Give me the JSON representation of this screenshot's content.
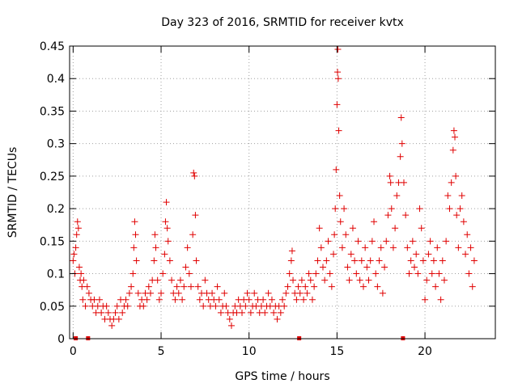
{
  "chart_data": {
    "type": "scatter",
    "title": "Day 323 of 2016, SRMTID for receiver kvtx",
    "xlabel": "GPS time / hours",
    "ylabel": "SRMTID / TECUs",
    "xlim": [
      -0.2,
      24
    ],
    "ylim": [
      0,
      0.45
    ],
    "xticks": [
      0,
      5,
      10,
      15,
      20
    ],
    "xtick_labels": [
      "0",
      "5",
      "10",
      "15",
      "20"
    ],
    "yticks": [
      0,
      0.05,
      0.1,
      0.15,
      0.2,
      0.25,
      0.3,
      0.35,
      0.4,
      0.45
    ],
    "ytick_labels": [
      "0",
      "0.05",
      "0.1",
      "0.15",
      "0.2",
      "0.25",
      "0.3",
      "0.35",
      "0.4",
      "0.45"
    ],
    "grid": true,
    "marker": "+",
    "color": "#e00000",
    "series": [
      {
        "name": "SRMTID",
        "points": [
          [
            0.0,
            0.12
          ],
          [
            0.05,
            0.13
          ],
          [
            0.1,
            0.1
          ],
          [
            0.15,
            0.14
          ],
          [
            0.2,
            0.16
          ],
          [
            0.25,
            0.18
          ],
          [
            0.3,
            0.17
          ],
          [
            0.35,
            0.11
          ],
          [
            0.4,
            0.09
          ],
          [
            0.45,
            0.1
          ],
          [
            0.5,
            0.08
          ],
          [
            0.55,
            0.06
          ],
          [
            0.6,
            0.09
          ],
          [
            0.7,
            0.05
          ],
          [
            0.8,
            0.08
          ],
          [
            0.9,
            0.07
          ],
          [
            1.0,
            0.06
          ],
          [
            1.1,
            0.05
          ],
          [
            1.2,
            0.06
          ],
          [
            1.3,
            0.04
          ],
          [
            1.4,
            0.05
          ],
          [
            1.5,
            0.06
          ],
          [
            1.6,
            0.04
          ],
          [
            1.7,
            0.05
          ],
          [
            1.8,
            0.03
          ],
          [
            1.9,
            0.05
          ],
          [
            2.0,
            0.04
          ],
          [
            2.1,
            0.03
          ],
          [
            2.2,
            0.02
          ],
          [
            2.3,
            0.03
          ],
          [
            2.4,
            0.04
          ],
          [
            2.5,
            0.05
          ],
          [
            2.6,
            0.03
          ],
          [
            2.7,
            0.06
          ],
          [
            2.8,
            0.04
          ],
          [
            2.9,
            0.05
          ],
          [
            3.0,
            0.06
          ],
          [
            3.1,
            0.05
          ],
          [
            3.2,
            0.07
          ],
          [
            3.3,
            0.08
          ],
          [
            3.4,
            0.1
          ],
          [
            3.45,
            0.14
          ],
          [
            3.5,
            0.18
          ],
          [
            3.55,
            0.16
          ],
          [
            3.6,
            0.12
          ],
          [
            3.7,
            0.07
          ],
          [
            3.8,
            0.05
          ],
          [
            3.9,
            0.06
          ],
          [
            4.0,
            0.05
          ],
          [
            4.1,
            0.07
          ],
          [
            4.2,
            0.06
          ],
          [
            4.3,
            0.08
          ],
          [
            4.4,
            0.07
          ],
          [
            4.5,
            0.09
          ],
          [
            4.6,
            0.12
          ],
          [
            4.65,
            0.16
          ],
          [
            4.7,
            0.14
          ],
          [
            4.8,
            0.09
          ],
          [
            4.9,
            0.06
          ],
          [
            5.0,
            0.07
          ],
          [
            5.1,
            0.1
          ],
          [
            5.2,
            0.13
          ],
          [
            5.25,
            0.18
          ],
          [
            5.3,
            0.21
          ],
          [
            5.35,
            0.17
          ],
          [
            5.4,
            0.15
          ],
          [
            5.5,
            0.12
          ],
          [
            5.6,
            0.09
          ],
          [
            5.7,
            0.07
          ],
          [
            5.8,
            0.06
          ],
          [
            5.9,
            0.08
          ],
          [
            6.0,
            0.07
          ],
          [
            6.1,
            0.09
          ],
          [
            6.2,
            0.06
          ],
          [
            6.3,
            0.08
          ],
          [
            6.4,
            0.11
          ],
          [
            6.5,
            0.14
          ],
          [
            6.6,
            0.1
          ],
          [
            6.7,
            0.08
          ],
          [
            6.8,
            0.16
          ],
          [
            6.85,
            0.255
          ],
          [
            6.9,
            0.25
          ],
          [
            6.95,
            0.19
          ],
          [
            7.0,
            0.12
          ],
          [
            7.1,
            0.08
          ],
          [
            7.2,
            0.06
          ],
          [
            7.3,
            0.07
          ],
          [
            7.4,
            0.05
          ],
          [
            7.5,
            0.09
          ],
          [
            7.6,
            0.07
          ],
          [
            7.7,
            0.06
          ],
          [
            7.8,
            0.05
          ],
          [
            7.9,
            0.07
          ],
          [
            8.0,
            0.06
          ],
          [
            8.1,
            0.05
          ],
          [
            8.2,
            0.08
          ],
          [
            8.3,
            0.06
          ],
          [
            8.4,
            0.04
          ],
          [
            8.5,
            0.05
          ],
          [
            8.6,
            0.07
          ],
          [
            8.7,
            0.05
          ],
          [
            8.8,
            0.04
          ],
          [
            8.9,
            0.03
          ],
          [
            9.0,
            0.02
          ],
          [
            9.1,
            0.04
          ],
          [
            9.2,
            0.05
          ],
          [
            9.3,
            0.04
          ],
          [
            9.4,
            0.06
          ],
          [
            9.5,
            0.05
          ],
          [
            9.6,
            0.04
          ],
          [
            9.7,
            0.06
          ],
          [
            9.8,
            0.05
          ],
          [
            9.9,
            0.07
          ],
          [
            10.0,
            0.06
          ],
          [
            10.1,
            0.04
          ],
          [
            10.2,
            0.05
          ],
          [
            10.3,
            0.07
          ],
          [
            10.4,
            0.05
          ],
          [
            10.5,
            0.06
          ],
          [
            10.6,
            0.04
          ],
          [
            10.7,
            0.05
          ],
          [
            10.8,
            0.06
          ],
          [
            10.9,
            0.04
          ],
          [
            11.0,
            0.05
          ],
          [
            11.1,
            0.07
          ],
          [
            11.2,
            0.05
          ],
          [
            11.3,
            0.06
          ],
          [
            11.4,
            0.04
          ],
          [
            11.5,
            0.05
          ],
          [
            11.6,
            0.03
          ],
          [
            11.7,
            0.05
          ],
          [
            11.8,
            0.04
          ],
          [
            11.9,
            0.06
          ],
          [
            12.0,
            0.05
          ],
          [
            12.1,
            0.07
          ],
          [
            12.2,
            0.08
          ],
          [
            12.3,
            0.1
          ],
          [
            12.4,
            0.12
          ],
          [
            12.45,
            0.135
          ],
          [
            12.5,
            0.09
          ],
          [
            12.6,
            0.07
          ],
          [
            12.7,
            0.06
          ],
          [
            12.8,
            0.08
          ],
          [
            12.9,
            0.07
          ],
          [
            13.0,
            0.09
          ],
          [
            13.1,
            0.06
          ],
          [
            13.2,
            0.08
          ],
          [
            13.3,
            0.07
          ],
          [
            13.4,
            0.1
          ],
          [
            13.5,
            0.09
          ],
          [
            13.6,
            0.06
          ],
          [
            13.7,
            0.08
          ],
          [
            13.8,
            0.1
          ],
          [
            13.9,
            0.12
          ],
          [
            14.0,
            0.17
          ],
          [
            14.1,
            0.14
          ],
          [
            14.2,
            0.11
          ],
          [
            14.3,
            0.09
          ],
          [
            14.4,
            0.12
          ],
          [
            14.5,
            0.15
          ],
          [
            14.6,
            0.1
          ],
          [
            14.7,
            0.08
          ],
          [
            14.8,
            0.13
          ],
          [
            14.85,
            0.16
          ],
          [
            14.9,
            0.2
          ],
          [
            14.95,
            0.26
          ],
          [
            15.0,
            0.36
          ],
          [
            15.03,
            0.41
          ],
          [
            15.05,
            0.445
          ],
          [
            15.07,
            0.4
          ],
          [
            15.1,
            0.32
          ],
          [
            15.15,
            0.22
          ],
          [
            15.2,
            0.18
          ],
          [
            15.3,
            0.14
          ],
          [
            15.4,
            0.2
          ],
          [
            15.5,
            0.16
          ],
          [
            15.6,
            0.11
          ],
          [
            15.7,
            0.09
          ],
          [
            15.8,
            0.13
          ],
          [
            15.9,
            0.17
          ],
          [
            16.0,
            0.12
          ],
          [
            16.1,
            0.1
          ],
          [
            16.2,
            0.15
          ],
          [
            16.3,
            0.09
          ],
          [
            16.4,
            0.12
          ],
          [
            16.5,
            0.08
          ],
          [
            16.6,
            0.14
          ],
          [
            16.7,
            0.11
          ],
          [
            16.8,
            0.09
          ],
          [
            16.9,
            0.12
          ],
          [
            17.0,
            0.15
          ],
          [
            17.1,
            0.18
          ],
          [
            17.2,
            0.1
          ],
          [
            17.3,
            0.08
          ],
          [
            17.4,
            0.12
          ],
          [
            17.5,
            0.14
          ],
          [
            17.6,
            0.07
          ],
          [
            17.7,
            0.11
          ],
          [
            17.8,
            0.15
          ],
          [
            17.9,
            0.19
          ],
          [
            18.0,
            0.25
          ],
          [
            18.05,
            0.24
          ],
          [
            18.1,
            0.2
          ],
          [
            18.2,
            0.14
          ],
          [
            18.3,
            0.17
          ],
          [
            18.4,
            0.22
          ],
          [
            18.5,
            0.24
          ],
          [
            18.6,
            0.28
          ],
          [
            18.65,
            0.34
          ],
          [
            18.7,
            0.3
          ],
          [
            18.8,
            0.24
          ],
          [
            18.9,
            0.19
          ],
          [
            19.0,
            0.14
          ],
          [
            19.1,
            0.1
          ],
          [
            19.2,
            0.12
          ],
          [
            19.3,
            0.15
          ],
          [
            19.4,
            0.11
          ],
          [
            19.5,
            0.13
          ],
          [
            19.6,
            0.1
          ],
          [
            19.7,
            0.2
          ],
          [
            19.8,
            0.17
          ],
          [
            19.9,
            0.12
          ],
          [
            20.0,
            0.06
          ],
          [
            20.1,
            0.09
          ],
          [
            20.2,
            0.13
          ],
          [
            20.3,
            0.15
          ],
          [
            20.4,
            0.1
          ],
          [
            20.5,
            0.12
          ],
          [
            20.6,
            0.08
          ],
          [
            20.7,
            0.14
          ],
          [
            20.8,
            0.1
          ],
          [
            20.9,
            0.06
          ],
          [
            21.0,
            0.12
          ],
          [
            21.1,
            0.09
          ],
          [
            21.2,
            0.15
          ],
          [
            21.3,
            0.22
          ],
          [
            21.4,
            0.2
          ],
          [
            21.5,
            0.24
          ],
          [
            21.6,
            0.29
          ],
          [
            21.65,
            0.32
          ],
          [
            21.7,
            0.31
          ],
          [
            21.75,
            0.25
          ],
          [
            21.8,
            0.19
          ],
          [
            21.9,
            0.14
          ],
          [
            22.0,
            0.2
          ],
          [
            22.1,
            0.22
          ],
          [
            22.2,
            0.18
          ],
          [
            22.3,
            0.13
          ],
          [
            22.4,
            0.16
          ],
          [
            22.5,
            0.1
          ],
          [
            22.6,
            0.14
          ],
          [
            22.7,
            0.08
          ],
          [
            22.8,
            0.12
          ]
        ]
      }
    ],
    "markers_on_x_axis": [
      0.15,
      0.85,
      12.85,
      18.75
    ]
  }
}
